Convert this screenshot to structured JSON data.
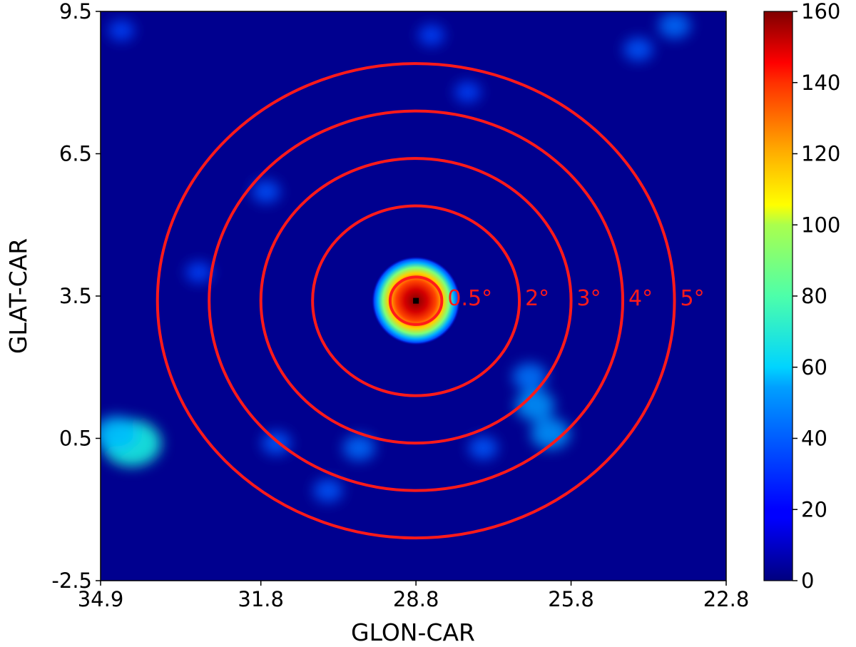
{
  "chart_data": {
    "type": "heatmap",
    "title": "",
    "xlabel": "GLON-CAR",
    "ylabel": "GLAT-CAR",
    "xlim": [
      34.9,
      22.8
    ],
    "ylim": [
      -2.5,
      9.5
    ],
    "x_ticks": [
      {
        "value": 34.9,
        "label": "34.9"
      },
      {
        "value": 31.8,
        "label": "31.8"
      },
      {
        "value": 28.8,
        "label": "28.8"
      },
      {
        "value": 25.8,
        "label": "25.8"
      },
      {
        "value": 22.8,
        "label": "22.8"
      }
    ],
    "y_ticks": [
      {
        "value": 9.5,
        "label": "9.5"
      },
      {
        "value": 6.5,
        "label": "6.5"
      },
      {
        "value": 3.5,
        "label": "3.5"
      },
      {
        "value": 0.5,
        "label": "0.5"
      },
      {
        "value": -2.5,
        "label": "-2.5"
      }
    ],
    "colormap": "jet",
    "colorbar": {
      "min": 0,
      "max": 160,
      "ticks": [
        {
          "value": 0,
          "label": "0"
        },
        {
          "value": 20,
          "label": "20"
        },
        {
          "value": 40,
          "label": "40"
        },
        {
          "value": 60,
          "label": "60"
        },
        {
          "value": 80,
          "label": "80"
        },
        {
          "value": 100,
          "label": "100"
        },
        {
          "value": 120,
          "label": "120"
        },
        {
          "value": 140,
          "label": "140"
        },
        {
          "value": 160,
          "label": "160"
        }
      ]
    },
    "source": {
      "glon": 28.8,
      "glat": 3.4,
      "peak_value": 160
    },
    "rings": [
      {
        "radius_deg": 0.5,
        "label": "0.5°"
      },
      {
        "radius_deg": 2,
        "label": "2°"
      },
      {
        "radius_deg": 3,
        "label": "3°"
      },
      {
        "radius_deg": 4,
        "label": "4°"
      },
      {
        "radius_deg": 5,
        "label": "5°"
      }
    ],
    "diffuse_patches": [
      {
        "glon": 34.3,
        "glat": 0.4,
        "value": 45
      },
      {
        "glon": 34.6,
        "glat": 0.6,
        "value": 30
      },
      {
        "glon": 26.5,
        "glat": 1.2,
        "value": 25
      },
      {
        "glon": 26.2,
        "glat": 0.6,
        "value": 25
      },
      {
        "glon": 26.6,
        "glat": 1.8,
        "value": 20
      },
      {
        "glon": 29.9,
        "glat": 0.3,
        "value": 18
      },
      {
        "glon": 31.5,
        "glat": 0.4,
        "value": 15
      },
      {
        "glon": 30.5,
        "glat": -0.6,
        "value": 15
      },
      {
        "glon": 27.5,
        "glat": 0.3,
        "value": 15
      },
      {
        "glon": 23.8,
        "glat": 9.2,
        "value": 18
      },
      {
        "glon": 24.5,
        "glat": 8.7,
        "value": 15
      },
      {
        "glon": 28.5,
        "glat": 9.0,
        "value": 12
      },
      {
        "glon": 31.7,
        "glat": 5.7,
        "value": 14
      },
      {
        "glon": 33.0,
        "glat": 4.0,
        "value": 12
      },
      {
        "glon": 34.5,
        "glat": 9.1,
        "value": 12
      },
      {
        "glon": 27.8,
        "glat": 7.8,
        "value": 12
      }
    ],
    "ring_color": "#ff1a1a",
    "background_color": "#00008f"
  }
}
